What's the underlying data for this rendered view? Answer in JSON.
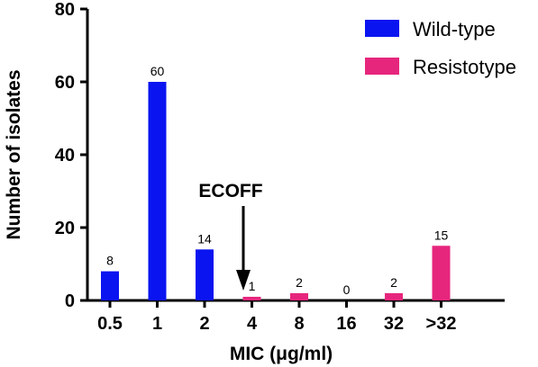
{
  "chart_data": {
    "type": "bar",
    "categories": [
      "0.5",
      "1",
      "2",
      "4",
      "8",
      "16",
      "32",
      ">32"
    ],
    "series": [
      {
        "name": "Wild-type",
        "values": [
          8,
          60,
          14,
          null,
          null,
          null,
          null,
          null
        ]
      },
      {
        "name": "Resistotype",
        "values": [
          null,
          null,
          null,
          1,
          2,
          0,
          2,
          15
        ]
      }
    ],
    "data_labels": [
      "8",
      "60",
      "14",
      "1",
      "2",
      "0",
      "2",
      "15"
    ],
    "xlabel": "MIC (μg/ml)",
    "ylabel": "Number of isolates",
    "ylim": [
      0,
      80
    ],
    "yticks": [
      0,
      20,
      40,
      60,
      80
    ],
    "grid": false,
    "legend": {
      "placement": "top-right",
      "entries": [
        "Wild-type",
        "Resistotype"
      ]
    },
    "annotations": [
      {
        "text": "ECOFF",
        "arrow": "down",
        "between": [
          "2",
          "4"
        ]
      }
    ],
    "colors": {
      "Wild-type": "#0a14f0",
      "Resistotype": "#e6267d"
    }
  }
}
